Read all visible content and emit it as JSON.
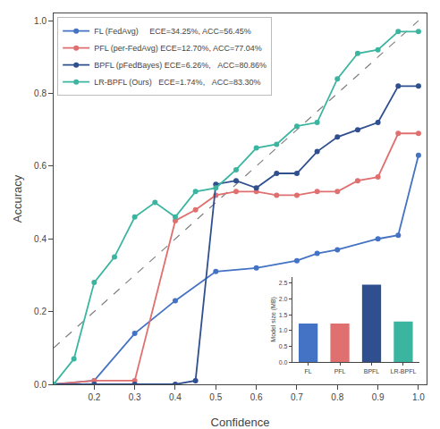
{
  "chart_data": [
    {
      "type": "line",
      "xlabel": "Confidence",
      "ylabel": "Accuracy",
      "xlim": [
        0.1,
        1.02
      ],
      "ylim": [
        0.0,
        1.02
      ],
      "xticks": [
        0.2,
        0.3,
        0.4,
        0.5,
        0.6,
        0.7,
        0.8,
        0.9,
        {
          "value": 1.0,
          "label": "1.0"
        }
      ],
      "yticks": [
        {
          "value": 0.0,
          "label": "0.0"
        },
        0.2,
        0.4,
        0.6,
        0.8,
        {
          "value": 1.0,
          "label": "1.0"
        }
      ],
      "grid": false,
      "legend": "upper left",
      "series": [
        {
          "color": "gray",
          "line_style": "dashed",
          "x": [
            0.1,
            1.0
          ],
          "values": [
            0.1,
            1.0
          ]
        },
        {
          "name": "FL (FedAvg)     ECE=34.25%, ACC=56.45%",
          "color": "#4472C4",
          "marker": "circle",
          "line_style": "solid",
          "x": [
            0.1,
            0.2,
            0.3,
            0.4,
            0.5,
            0.6,
            0.7,
            0.75,
            0.8,
            0.9,
            0.95,
            1.0
          ],
          "values": [
            0.0,
            0.01,
            0.14,
            0.23,
            0.31,
            0.32,
            0.34,
            0.36,
            0.37,
            0.4,
            0.41,
            0.63
          ]
        },
        {
          "name": "PFL (per-FedAvg) ECE=12.70%, ACC=77.04%",
          "color": "#E07070",
          "marker": "circle",
          "line_style": "solid",
          "x": [
            0.1,
            0.2,
            0.3,
            0.4,
            0.45,
            0.5,
            0.55,
            0.6,
            0.65,
            0.7,
            0.75,
            0.8,
            0.85,
            0.9,
            0.95,
            1.0
          ],
          "values": [
            0.0,
            0.01,
            0.01,
            0.45,
            0.48,
            0.52,
            0.53,
            0.53,
            0.52,
            0.52,
            0.53,
            0.53,
            0.56,
            0.57,
            0.69,
            0.69
          ]
        },
        {
          "name": "BPFL (pFedBayes) ECE=6.26%,   ACC=80.86%",
          "color": "#2F4F8F",
          "marker": "circle",
          "line_style": "solid",
          "x": [
            0.1,
            0.2,
            0.3,
            0.4,
            0.45,
            0.5,
            0.55,
            0.6,
            0.65,
            0.7,
            0.75,
            0.8,
            0.85,
            0.9,
            0.95,
            1.0
          ],
          "values": [
            0.0,
            0.0,
            0.0,
            0.0,
            0.01,
            0.55,
            0.56,
            0.54,
            0.58,
            0.58,
            0.64,
            0.68,
            0.7,
            0.72,
            0.82,
            0.82
          ]
        },
        {
          "name": "LR-BPFL (Ours)   ECE=1.74%,   ACC=83.30%",
          "color": "#3CB5A0",
          "marker": "circle",
          "line_style": "solid",
          "x": [
            0.1,
            0.15,
            0.2,
            0.25,
            0.3,
            0.35,
            0.4,
            0.45,
            0.5,
            0.55,
            0.6,
            0.65,
            0.7,
            0.75,
            0.8,
            0.85,
            0.9,
            0.95,
            1.0
          ],
          "values": [
            0.0,
            0.07,
            0.28,
            0.35,
            0.46,
            0.5,
            0.46,
            0.53,
            0.54,
            0.59,
            0.65,
            0.66,
            0.71,
            0.72,
            0.84,
            0.91,
            0.92,
            0.97,
            0.97
          ]
        }
      ]
    },
    {
      "type": "bar",
      "categories": [
        "FL",
        "PFL",
        "BPFL",
        "LR-BPFL"
      ],
      "values": [
        1.22,
        1.22,
        2.45,
        1.28
      ],
      "colors": [
        "#4472C4",
        "#E07070",
        "#2F4F8F",
        "#3CB5A0"
      ],
      "ylabel": "Model size (MB)",
      "ylim": [
        0,
        2.7
      ],
      "yticks": [
        {
          "value": 0.0,
          "label": "0.0"
        },
        0.5,
        {
          "value": 1.0,
          "label": "1.0"
        },
        1.5,
        {
          "value": 2.0,
          "label": "2.0"
        },
        2.5
      ],
      "grid": false
    }
  ]
}
